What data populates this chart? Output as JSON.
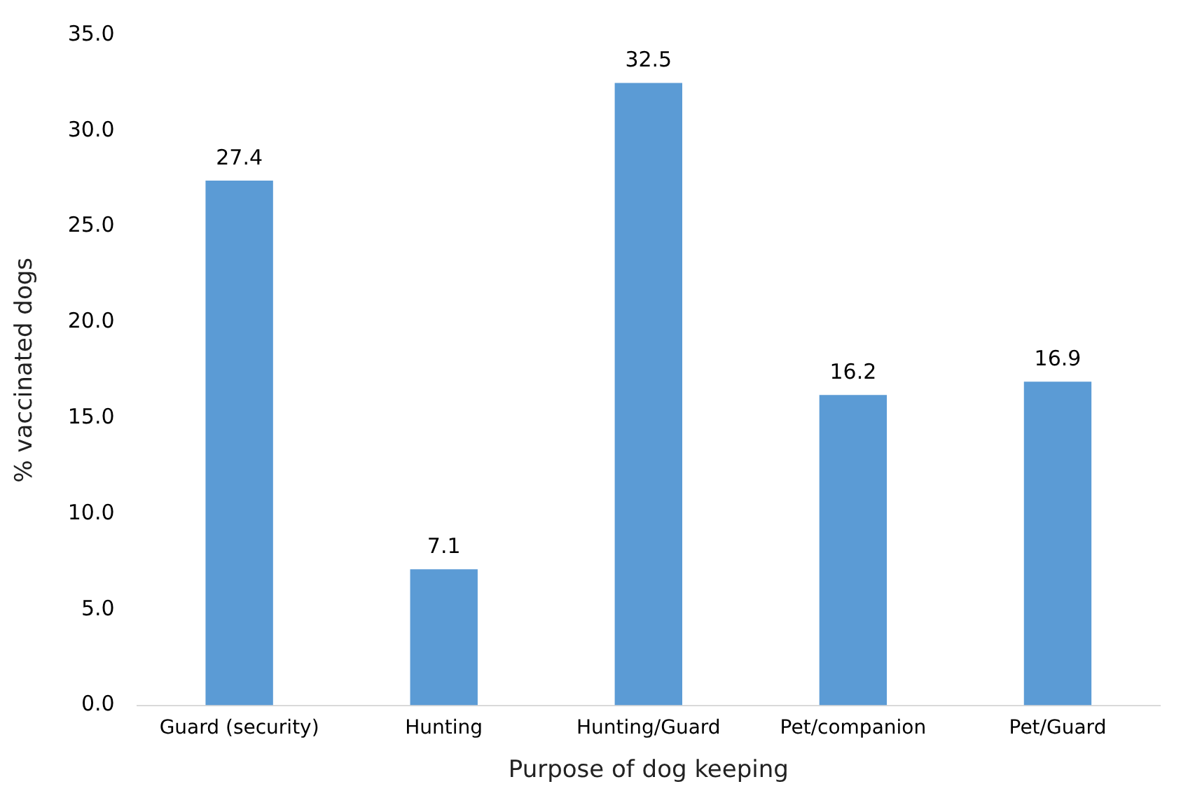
{
  "chart_data": {
    "type": "bar",
    "xlabel": "Purpose of dog keeping",
    "ylabel": "% vaccinated dogs",
    "categories": [
      "Guard (security)",
      "Hunting",
      "Hunting/Guard",
      "Pet/companion",
      "Pet/Guard"
    ],
    "values": [
      27.4,
      7.1,
      32.5,
      16.2,
      16.9
    ],
    "color": "#5b9bd5",
    "ylim": [
      0,
      35
    ],
    "yticks": [
      {
        "value": 0,
        "label": "0.0"
      },
      {
        "value": 5,
        "label": "5.0"
      },
      {
        "value": 10,
        "label": "10.0"
      },
      {
        "value": 15,
        "label": "15.0"
      },
      {
        "value": 20,
        "label": "20.0"
      },
      {
        "value": 25,
        "label": "25.0"
      },
      {
        "value": 30,
        "label": "30.0"
      },
      {
        "value": 35,
        "label": "35.0"
      }
    ],
    "grid": false,
    "legend": false,
    "data_labels": true
  }
}
